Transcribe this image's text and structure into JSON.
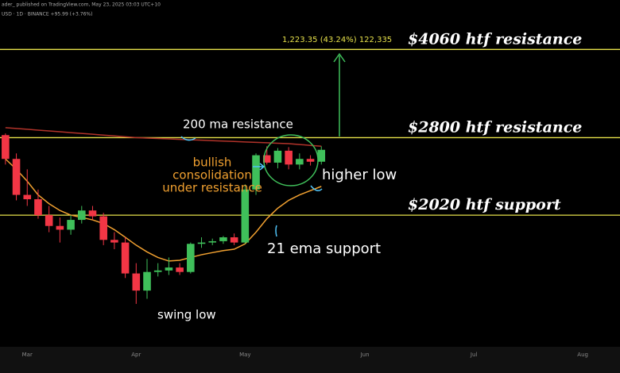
{
  "chart_data": {
    "type": "candlestick",
    "header": "ader_ published on TradingView.com, May 23, 2025 03:03 UTC+10",
    "subheader": "USD · 1D · BINANCE  +95.99 (+3.76%)",
    "log_scale": true,
    "ylim": [
      1160,
      5000
    ],
    "categories": [
      null,
      null,
      "Mar",
      null,
      null,
      null,
      null,
      null,
      null,
      null,
      null,
      null,
      "Apr",
      null,
      null,
      null,
      null,
      null,
      null,
      null,
      null,
      null,
      "May",
      null,
      null,
      null,
      null,
      null,
      null,
      null,
      null,
      null,
      null,
      "Jun",
      null,
      null,
      null,
      null,
      null,
      null,
      null,
      null,
      null,
      "Jul",
      null,
      null,
      null,
      null,
      null,
      null,
      null,
      null,
      null,
      "Aug"
    ],
    "open": [
      2830,
      2560,
      2200,
      2160,
      2020,
      1930,
      1900,
      1980,
      2060,
      2010,
      1820,
      1800,
      1580,
      1470,
      1590,
      1600,
      1620,
      1590,
      1790,
      1800,
      1810,
      1840,
      1800,
      2250,
      2600,
      2520,
      2650,
      2500,
      2560,
      2530,
      null,
      null,
      null,
      null,
      null,
      null,
      null,
      null,
      null,
      null,
      null,
      null,
      null,
      null,
      null,
      null,
      null,
      null,
      null,
      null,
      null,
      null,
      null,
      null
    ],
    "high": [
      2850,
      2620,
      2450,
      2250,
      2100,
      2000,
      2020,
      2100,
      2100,
      2040,
      1880,
      1840,
      1650,
      1680,
      1650,
      1690,
      1650,
      1800,
      1840,
      1830,
      1850,
      1870,
      2300,
      2620,
      2700,
      2680,
      2690,
      2620,
      2600,
      2700,
      null,
      null,
      null,
      null,
      null,
      null,
      null,
      null,
      null,
      null,
      null,
      null,
      null,
      null,
      null,
      null,
      null,
      null,
      null,
      null,
      null,
      null,
      null,
      null
    ],
    "low": [
      2500,
      2150,
      2100,
      1990,
      1880,
      1800,
      1860,
      1950,
      1980,
      1780,
      1750,
      1550,
      1390,
      1420,
      1560,
      1570,
      1570,
      1580,
      1760,
      1780,
      1790,
      1780,
      1790,
      2200,
      2500,
      2460,
      2450,
      2450,
      2490,
      2500,
      null,
      null,
      null,
      null,
      null,
      null,
      null,
      null,
      null,
      null,
      null,
      null,
      null,
      null,
      null,
      null,
      null,
      null,
      null,
      null,
      null,
      null,
      null,
      null
    ],
    "close": [
      2560,
      2200,
      2160,
      2020,
      1930,
      1900,
      1980,
      2060,
      2010,
      1820,
      1800,
      1580,
      1470,
      1590,
      1600,
      1620,
      1590,
      1790,
      1800,
      1810,
      1840,
      1800,
      2250,
      2600,
      2520,
      2650,
      2500,
      2560,
      2530,
      2660,
      null,
      null,
      null,
      null,
      null,
      null,
      null,
      null,
      null,
      null,
      null,
      null,
      null,
      null,
      null,
      null,
      null,
      null,
      null,
      null,
      null,
      null,
      null,
      null
    ],
    "up_color": "#3fbf5a",
    "down_color": "#f23645",
    "series": [
      {
        "name": "21 ema",
        "color": "#f0a030",
        "values": [
          2560,
          2450,
          2330,
          2200,
          2120,
          2060,
          2020,
          2000,
          1980,
          1950,
          1900,
          1840,
          1780,
          1730,
          1690,
          1665,
          1670,
          1690,
          1710,
          1725,
          1740,
          1750,
          1790,
          1880,
          1990,
          2080,
          2150,
          2200,
          2240,
          2280,
          null,
          null,
          null,
          null,
          null,
          null,
          null,
          null,
          null,
          null,
          null,
          null,
          null,
          null,
          null,
          null,
          null,
          null,
          null,
          null,
          null,
          null,
          null,
          null
        ]
      },
      {
        "name": "200 ma",
        "color": "#b2332a",
        "values": [
          2920,
          2910,
          2900,
          2890,
          2880,
          2870,
          2860,
          2850,
          2840,
          2830,
          2820,
          2810,
          2800,
          2795,
          2790,
          2785,
          2780,
          2775,
          2770,
          2765,
          2760,
          2755,
          2750,
          2745,
          2740,
          2735,
          2730,
          2720,
          2710,
          2700,
          null,
          null,
          null,
          null,
          null,
          null,
          null,
          null,
          null,
          null,
          null,
          null,
          null,
          null,
          null,
          null,
          null,
          null,
          null,
          null,
          null,
          null,
          null,
          null
        ]
      }
    ],
    "levels": [
      {
        "value": 4060,
        "label": "$4060 htf resistance"
      },
      {
        "value": 2800,
        "label": "$2800 htf resistance"
      },
      {
        "value": 2020,
        "label": "$2020 htf support"
      }
    ],
    "level_color": "#e6e04a",
    "measure_label": "1,223.35 (43.24%) 122,335",
    "annotations": [
      "200 ma resistance",
      "bullish",
      "consolidation",
      "under resistance",
      "higher low",
      "21 ema support",
      "swing low"
    ]
  }
}
